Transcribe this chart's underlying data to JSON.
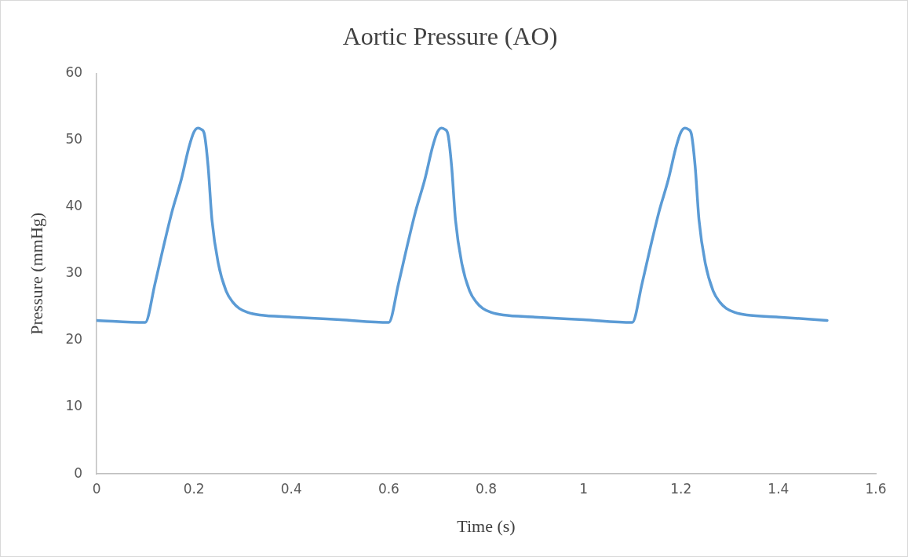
{
  "chart_data": {
    "type": "line",
    "title": "Aortic Pressure (AO)",
    "xlabel": "Time (s)",
    "ylabel": "Pressure (mmHg)",
    "x": [
      0,
      0.1,
      0.12,
      0.137,
      0.155,
      0.174,
      0.19,
      0.2,
      0.208,
      0.215,
      0.221,
      0.229,
      0.237,
      0.25,
      0.266,
      0.28,
      0.293,
      0.31,
      0.335,
      0.4,
      0.5,
      0.6,
      0.62,
      0.637,
      0.655,
      0.674,
      0.69,
      0.7,
      0.708,
      0.715,
      0.721,
      0.729,
      0.737,
      0.75,
      0.766,
      0.78,
      0.793,
      0.81,
      0.835,
      0.9,
      1.0,
      1.1,
      1.12,
      1.137,
      1.155,
      1.174,
      1.19,
      1.2,
      1.208,
      1.215,
      1.221,
      1.229,
      1.237,
      1.25,
      1.266,
      1.28,
      1.293,
      1.31,
      1.335,
      1.4,
      1.5
    ],
    "series": [
      {
        "color": "#5b9bd5",
        "values": [
          23.0,
          22.7,
          28.5,
          33.9,
          39.3,
          44.1,
          49.0,
          51.2,
          51.8,
          51.6,
          51.0,
          46.1,
          38.0,
          31.5,
          27.4,
          25.7,
          24.8,
          24.2,
          23.8,
          23.5,
          23.1,
          22.7,
          28.5,
          33.9,
          39.3,
          44.1,
          49.0,
          51.2,
          51.8,
          51.6,
          51.0,
          46.1,
          38.0,
          31.5,
          27.4,
          25.7,
          24.8,
          24.2,
          23.8,
          23.5,
          23.1,
          22.7,
          28.5,
          33.9,
          39.3,
          44.1,
          49.0,
          51.2,
          51.8,
          51.6,
          51.0,
          46.1,
          38.0,
          31.5,
          27.4,
          25.7,
          24.8,
          24.2,
          23.8,
          23.5,
          23.0
        ]
      }
    ],
    "xlim": [
      0,
      1.6
    ],
    "xticks": [
      0,
      0.2,
      0.4,
      0.6,
      0.8,
      1,
      1.2,
      1.4,
      1.6
    ],
    "ylim": [
      0,
      60
    ],
    "yticks": [
      0,
      10,
      20,
      30,
      40,
      50,
      60
    ],
    "grid": false,
    "legend": false,
    "marker": "none",
    "line_style": "solid"
  }
}
